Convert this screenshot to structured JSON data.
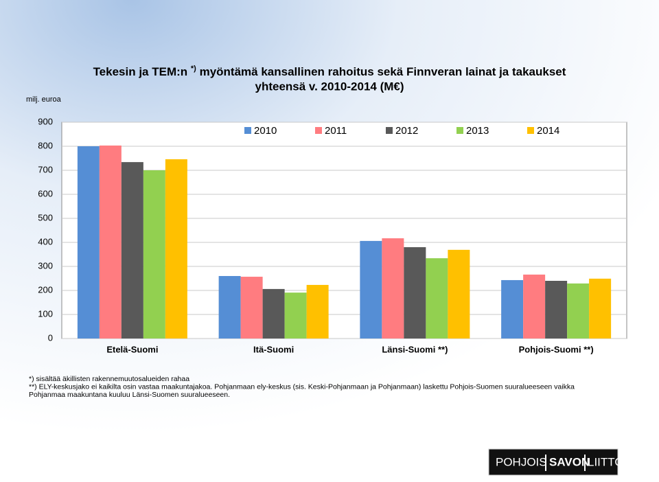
{
  "chart_data": {
    "type": "bar",
    "title": {
      "before": "Tekesin ja TEM:n",
      "superscript": "*)",
      "after": "myöntämä kansallinen rahoitus sekä Finnveran lainat ja takaukset",
      "line2": "yhteensä v. 2010-2014 (M€)"
    },
    "y_label": "milj. euroa",
    "categories": [
      "Etelä-Suomi",
      "Itä-Suomi",
      "Länsi-Suomi **)",
      "Pohjois-Suomi **)"
    ],
    "series": [
      {
        "name": "2010",
        "color": "#558ed5",
        "values": [
          800,
          260,
          406,
          243
        ]
      },
      {
        "name": "2011",
        "color": "#ff7c80",
        "values": [
          803,
          257,
          417,
          266
        ]
      },
      {
        "name": "2012",
        "color": "#595959",
        "values": [
          734,
          206,
          380,
          240
        ]
      },
      {
        "name": "2013",
        "color": "#92d050",
        "values": [
          700,
          191,
          334,
          229
        ]
      },
      {
        "name": "2014",
        "color": "#ffc000",
        "values": [
          746,
          223,
          369,
          249
        ]
      }
    ],
    "ylim": [
      0,
      900
    ],
    "yticks": [
      0,
      100,
      200,
      300,
      400,
      500,
      600,
      700,
      800,
      900
    ],
    "grid": true,
    "legend": "top"
  },
  "footnotes": [
    "*) sisältää äkillisten rakennemuutosalueiden rahaa",
    "**) ELY-keskusjako ei kaikilta osin vastaa maakuntajakoa. Pohjanmaan ely-keskus (sis. Keski-Pohjanmaan ja Pohjanmaan) laskettu Pohjois-Suomen suuralueeseen vaikka",
    "Pohjanmaa maakuntana kuuluu Länsi-Suomen suuralueeseen."
  ],
  "logo": [
    "POHJOIS",
    "SAVON",
    "LIITTO"
  ]
}
